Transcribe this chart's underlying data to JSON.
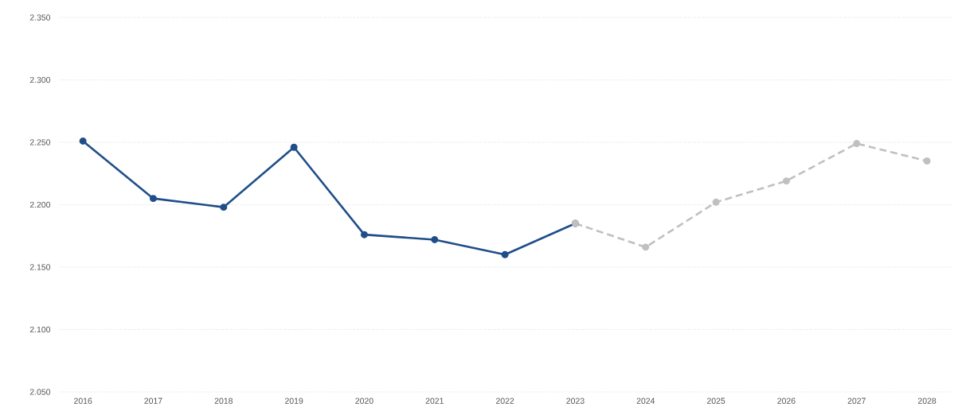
{
  "chart_data": {
    "type": "line",
    "categories": [
      "2016",
      "2017",
      "2018",
      "2019",
      "2020",
      "2021",
      "2022",
      "2023",
      "2024",
      "2025",
      "2026",
      "2027",
      "2028"
    ],
    "series": [
      {
        "color": "#1f4e89",
        "line_style": "solid",
        "values": [
          2.251,
          2.205,
          2.198,
          2.246,
          2.176,
          2.172,
          2.16,
          2.185,
          null,
          null,
          null,
          null,
          null
        ]
      },
      {
        "color": "#c0c0c0",
        "line_style": "dashed",
        "values": [
          null,
          null,
          null,
          null,
          null,
          null,
          null,
          2.185,
          2.166,
          2.202,
          2.219,
          2.249,
          2.235
        ]
      }
    ],
    "ylim": [
      2.05,
      2.35
    ],
    "yticks": [
      {
        "value": 2.05,
        "label": "2.050"
      },
      {
        "value": 2.1,
        "label": "2.100"
      },
      {
        "value": 2.15,
        "label": "2.150"
      },
      {
        "value": 2.2,
        "label": "2.200"
      },
      {
        "value": 2.25,
        "label": "2.250"
      },
      {
        "value": 2.3,
        "label": "2.300"
      },
      {
        "value": 2.35,
        "label": "2.350"
      }
    ],
    "grid": "y",
    "marker": "circle"
  }
}
